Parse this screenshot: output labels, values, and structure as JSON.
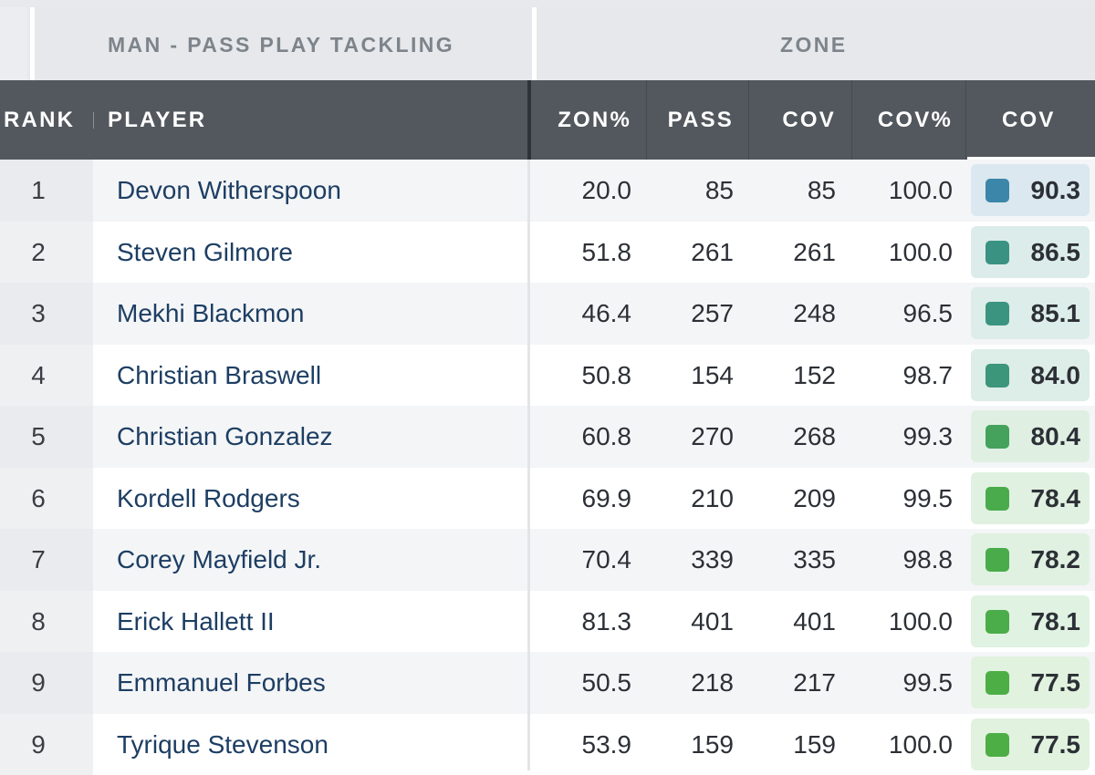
{
  "groups": {
    "left_label": "MAN - PASS PLAY TACKLING",
    "right_label": "ZONE"
  },
  "columns": {
    "rank": "RANK",
    "player": "PLAYER",
    "zon_pct": "ZON%",
    "pass": "PASS",
    "cov": "COV",
    "cov_pct": "COV%",
    "cov_grade": "COV"
  },
  "rows": [
    {
      "rank": "1",
      "player": "Devon Witherspoon",
      "zon_pct": "20.0",
      "pass": "85",
      "cov": "85",
      "cov_pct": "100.0",
      "grade": "90.3",
      "grade_color": "#3b86a9",
      "grade_bg": "#dbe8ef"
    },
    {
      "rank": "2",
      "player": "Steven Gilmore",
      "zon_pct": "51.8",
      "pass": "261",
      "cov": "261",
      "cov_pct": "100.0",
      "grade": "86.5",
      "grade_color": "#3a9283",
      "grade_bg": "#dcecea"
    },
    {
      "rank": "3",
      "player": "Mekhi Blackmon",
      "zon_pct": "46.4",
      "pass": "257",
      "cov": "248",
      "cov_pct": "96.5",
      "grade": "85.1",
      "grade_color": "#3b9480",
      "grade_bg": "#ddede9"
    },
    {
      "rank": "4",
      "player": "Christian Braswell",
      "zon_pct": "50.8",
      "pass": "154",
      "cov": "152",
      "cov_pct": "98.7",
      "grade": "84.0",
      "grade_color": "#3c967a",
      "grade_bg": "#ddede7"
    },
    {
      "rank": "5",
      "player": "Christian Gonzalez",
      "zon_pct": "60.8",
      "pass": "270",
      "cov": "268",
      "cov_pct": "99.3",
      "grade": "80.4",
      "grade_color": "#44a25c",
      "grade_bg": "#dff0e3"
    },
    {
      "rank": "6",
      "player": "Kordell Rodgers",
      "zon_pct": "69.9",
      "pass": "210",
      "cov": "209",
      "cov_pct": "99.5",
      "grade": "78.4",
      "grade_color": "#4aab4c",
      "grade_bg": "#e0f1e1"
    },
    {
      "rank": "7",
      "player": "Corey Mayfield Jr.",
      "zon_pct": "70.4",
      "pass": "339",
      "cov": "335",
      "cov_pct": "98.8",
      "grade": "78.2",
      "grade_color": "#4aab4b",
      "grade_bg": "#e0f1e1"
    },
    {
      "rank": "8",
      "player": "Erick Hallett II",
      "zon_pct": "81.3",
      "pass": "401",
      "cov": "401",
      "cov_pct": "100.0",
      "grade": "78.1",
      "grade_color": "#4bac4a",
      "grade_bg": "#e0f2e1"
    },
    {
      "rank": "9",
      "player": "Emmanuel Forbes",
      "zon_pct": "50.5",
      "pass": "218",
      "cov": "217",
      "cov_pct": "99.5",
      "grade": "77.5",
      "grade_color": "#4dae45",
      "grade_bg": "#e1f2df"
    },
    {
      "rank": "9",
      "player": "Tyrique Stevenson",
      "zon_pct": "53.9",
      "pass": "159",
      "cov": "159",
      "cov_pct": "100.0",
      "grade": "77.5",
      "grade_color": "#4dae45",
      "grade_bg": "#e1f2df"
    }
  ]
}
